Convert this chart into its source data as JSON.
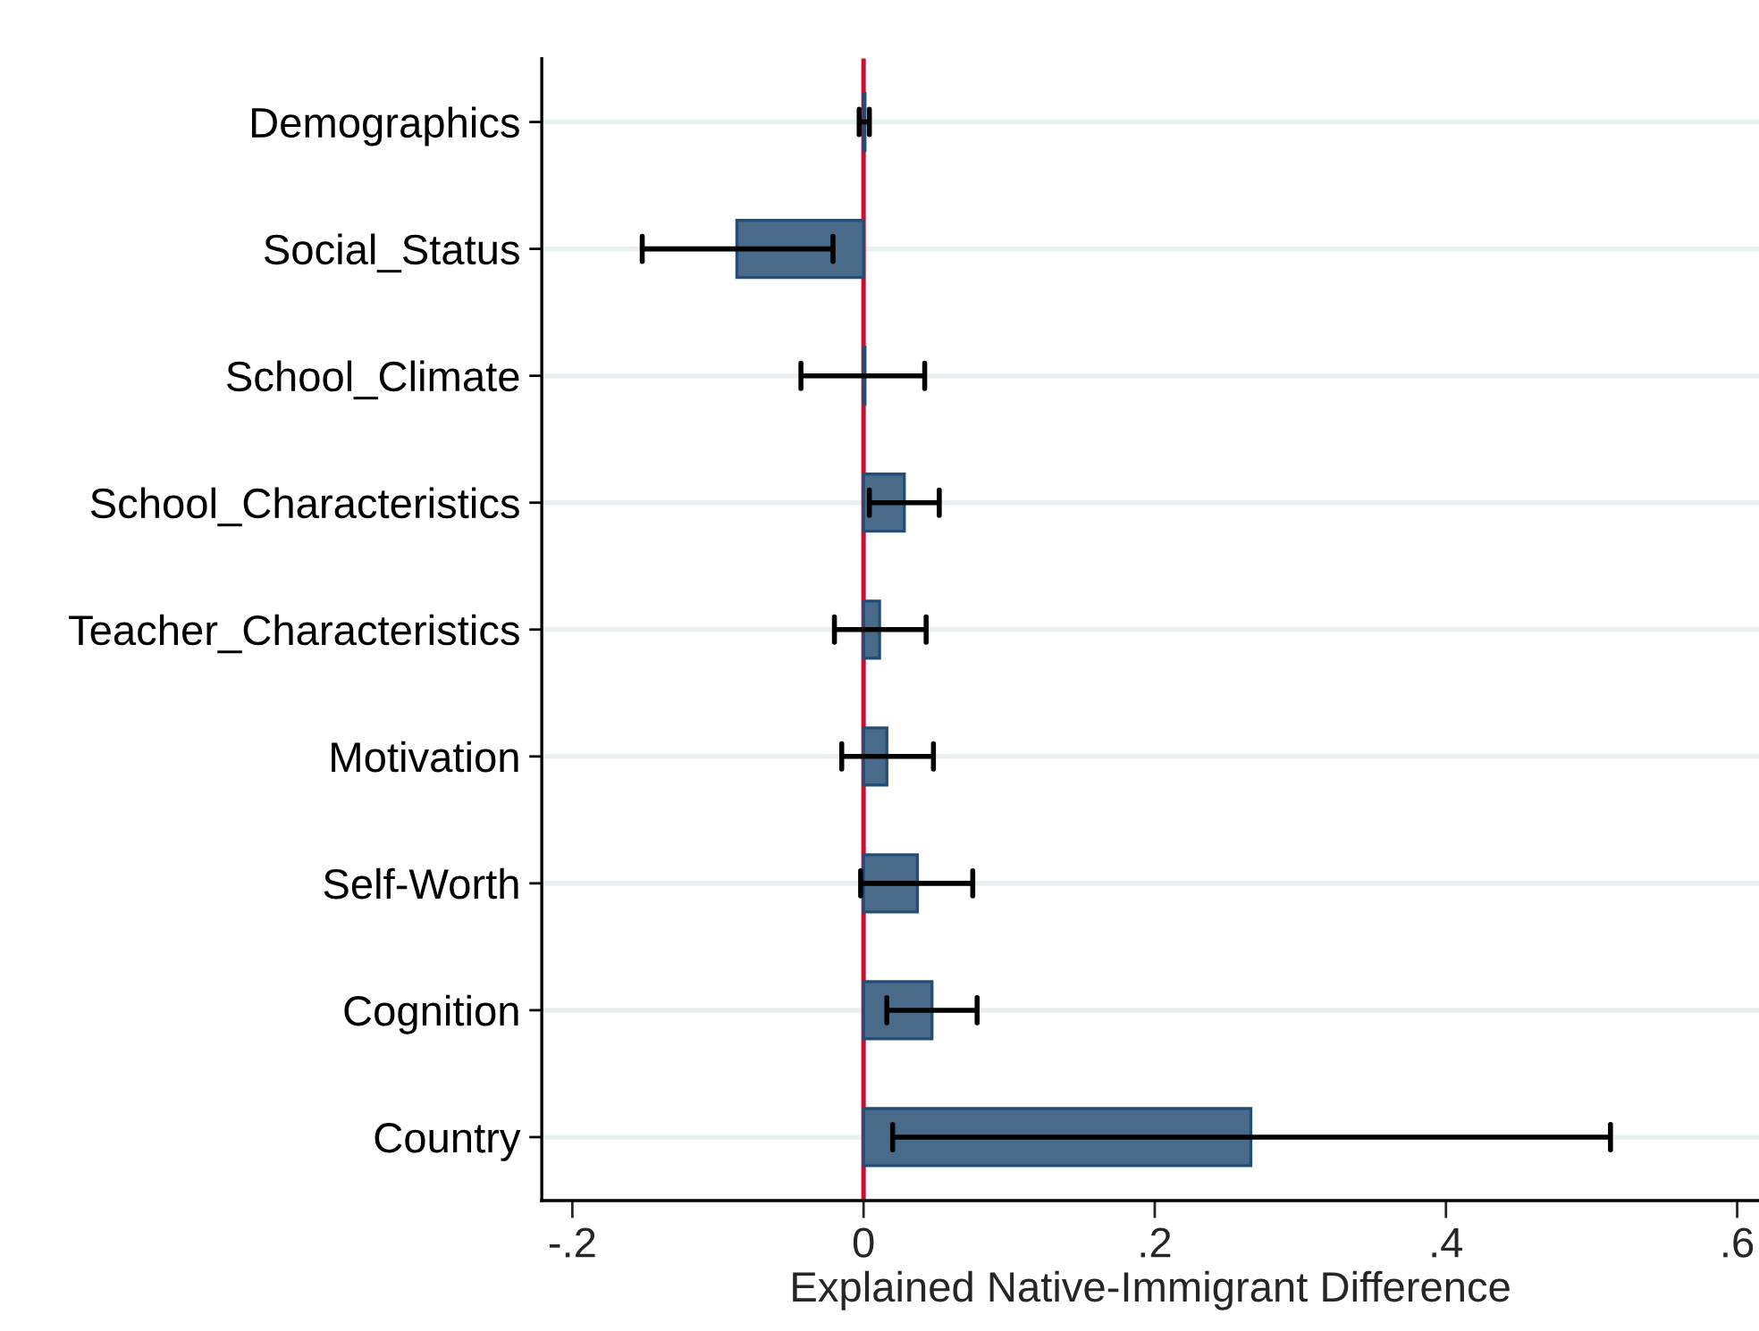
{
  "chart_data": {
    "type": "bar",
    "orientation": "horizontal",
    "xlabel": "Explained Native-Immigrant Difference",
    "categories": [
      "Demographics",
      "Social_Status",
      "School_Climate",
      "School_Characteristics",
      "Teacher_Characteristics",
      "Motivation",
      "Self-Worth",
      "Cognition",
      "Country"
    ],
    "values": [
      0.001,
      -0.087,
      0.001,
      0.028,
      0.011,
      0.016,
      0.037,
      0.047,
      0.266
    ],
    "errors": [
      [
        -0.003,
        0.004
      ],
      [
        -0.152,
        -0.021
      ],
      [
        -0.043,
        0.042
      ],
      [
        0.004,
        0.052
      ],
      [
        -0.02,
        0.043
      ],
      [
        -0.015,
        0.048
      ],
      [
        -0.002,
        0.075
      ],
      [
        0.016,
        0.078
      ],
      [
        0.02,
        0.513
      ]
    ],
    "color": "#4a6a8a",
    "xlim": [
      -0.221,
      0.615
    ],
    "xticks": [
      {
        "value": -0.2,
        "label": "-.2"
      },
      0,
      {
        "value": 0.2,
        "label": ".2"
      },
      {
        "value": 0.4,
        "label": ".4"
      },
      {
        "value": 0.6,
        "label": ".6"
      }
    ],
    "ref_lines": [
      {
        "axis": "x",
        "value": 0,
        "color": "#c8102e"
      }
    ],
    "grid": "y"
  }
}
